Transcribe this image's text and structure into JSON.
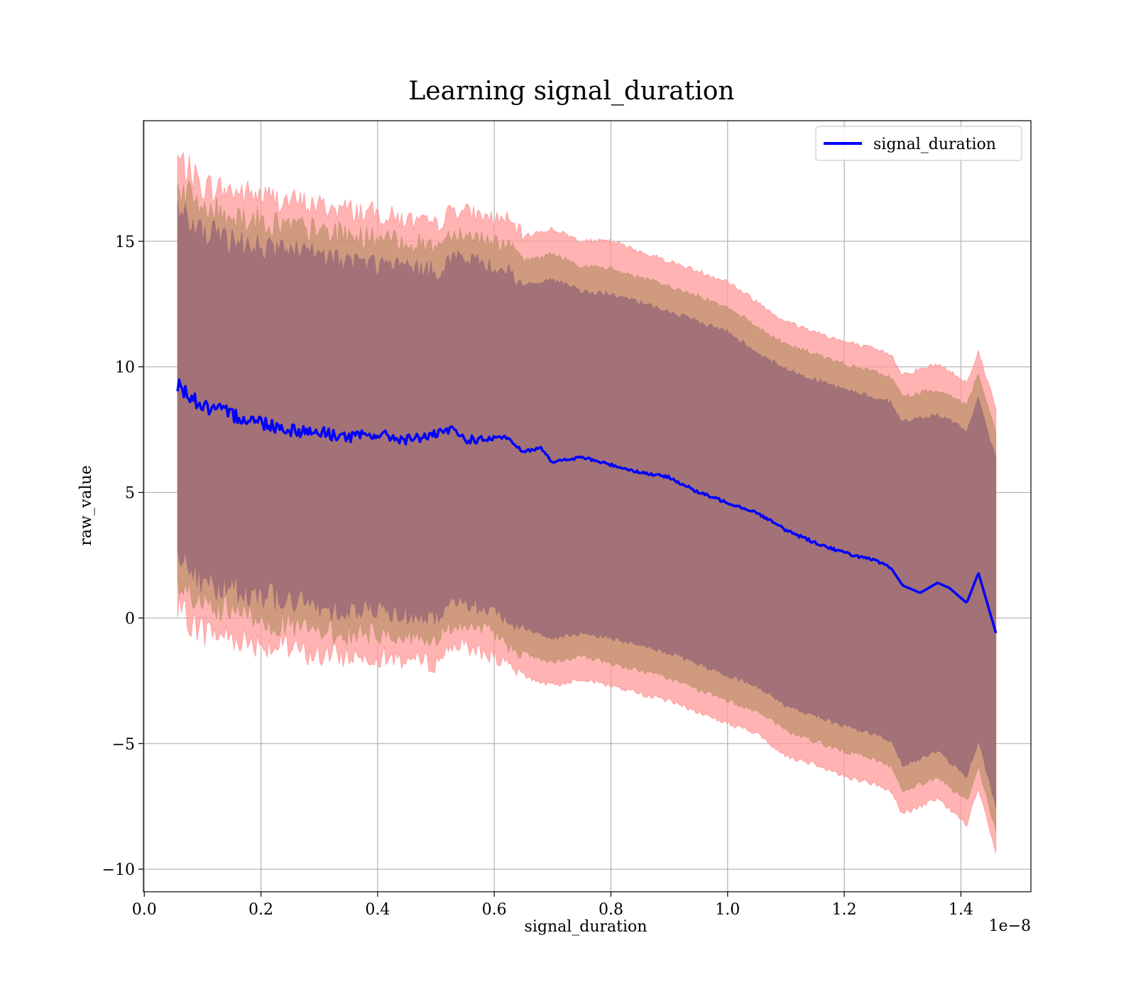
{
  "chart_data": {
    "type": "line",
    "title": "Learning signal_duration",
    "xlabel": "signal_duration",
    "ylabel": "raw_value",
    "x_offset_label": "1e−8",
    "xlim": [
      -0.0015,
      1.52
    ],
    "ylim": [
      -10.9,
      19.8
    ],
    "x_ticks": [
      0.0,
      0.2,
      0.4,
      0.6,
      0.8,
      1.0,
      1.2,
      1.4
    ],
    "x_tick_labels": [
      "0.0",
      "0.2",
      "0.4",
      "0.6",
      "0.8",
      "1.0",
      "1.2",
      "1.4"
    ],
    "y_ticks": [
      -10,
      -5,
      0,
      5,
      10,
      15
    ],
    "y_tick_labels": [
      "−10",
      "−5",
      "0",
      "5",
      "10",
      "15"
    ],
    "grid": true,
    "legend_position": "top-right",
    "colors": {
      "line": "#0000ff",
      "band_outer": "#ff9999",
      "band_middle": "#c49470",
      "band_inner": "#a06f78",
      "grid": "#b0b0b0"
    },
    "series": [
      {
        "name": "signal_duration",
        "x": [
          0.057,
          0.1,
          0.15,
          0.2,
          0.25,
          0.3,
          0.35,
          0.4,
          0.45,
          0.5,
          0.53,
          0.55,
          0.58,
          0.62,
          0.65,
          0.68,
          0.7,
          0.75,
          0.8,
          0.85,
          0.9,
          0.95,
          1.0,
          1.05,
          1.1,
          1.15,
          1.2,
          1.25,
          1.28,
          1.3,
          1.33,
          1.36,
          1.38,
          1.41,
          1.43,
          1.46
        ],
        "y": [
          9.3,
          8.4,
          8.1,
          7.8,
          7.5,
          7.4,
          7.2,
          7.3,
          7.1,
          7.3,
          7.5,
          7.1,
          7.1,
          7.2,
          6.6,
          6.8,
          6.2,
          6.4,
          6.1,
          5.8,
          5.6,
          5.0,
          4.6,
          4.2,
          3.5,
          3.0,
          2.6,
          2.3,
          2.0,
          1.3,
          1.0,
          1.4,
          1.2,
          0.6,
          1.8,
          -0.6
        ]
      }
    ],
    "bands": [
      {
        "role": "outer",
        "x": [
          0.057,
          0.1,
          0.2,
          0.3,
          0.4,
          0.5,
          0.53,
          0.6,
          0.62,
          0.65,
          0.7,
          0.75,
          0.8,
          0.9,
          1.0,
          1.05,
          1.1,
          1.15,
          1.2,
          1.25,
          1.28,
          1.3,
          1.36,
          1.41,
          1.43,
          1.46
        ],
        "upper": [
          18.3,
          17.2,
          16.8,
          16.4,
          16.1,
          15.6,
          16.3,
          15.9,
          15.9,
          15.2,
          15.5,
          15.0,
          15.0,
          14.2,
          13.4,
          12.6,
          11.8,
          11.4,
          11.0,
          10.7,
          10.5,
          9.7,
          10.1,
          9.4,
          10.6,
          8.4
        ],
        "lower": [
          0.3,
          -0.5,
          -1.0,
          -1.5,
          -1.5,
          -1.8,
          -1.0,
          -1.5,
          -1.9,
          -2.3,
          -2.7,
          -2.4,
          -2.7,
          -3.3,
          -4.2,
          -4.6,
          -5.5,
          -5.8,
          -6.3,
          -6.6,
          -6.9,
          -7.8,
          -7.2,
          -8.2,
          -6.8,
          -9.4
        ]
      },
      {
        "role": "middle",
        "x": [
          0.057,
          0.1,
          0.2,
          0.3,
          0.4,
          0.5,
          0.53,
          0.6,
          0.62,
          0.65,
          0.7,
          0.75,
          0.8,
          0.9,
          1.0,
          1.05,
          1.1,
          1.15,
          1.2,
          1.25,
          1.28,
          1.3,
          1.36,
          1.41,
          1.43,
          1.46
        ],
        "upper": [
          17.2,
          16.3,
          15.8,
          15.4,
          15.1,
          14.8,
          15.4,
          15.0,
          14.9,
          14.2,
          14.5,
          14.0,
          13.9,
          13.2,
          12.4,
          11.6,
          10.9,
          10.5,
          10.1,
          9.8,
          9.6,
          8.8,
          9.1,
          8.5,
          9.7,
          7.3
        ],
        "lower": [
          1.3,
          0.4,
          0.0,
          -0.6,
          -0.6,
          -0.9,
          -0.2,
          -0.6,
          -1.0,
          -1.4,
          -1.8,
          -1.5,
          -1.8,
          -2.4,
          -3.3,
          -3.7,
          -4.5,
          -4.9,
          -5.3,
          -5.6,
          -5.9,
          -6.9,
          -6.3,
          -7.3,
          -5.9,
          -8.5
        ]
      },
      {
        "role": "inner",
        "x": [
          0.057,
          0.1,
          0.2,
          0.3,
          0.4,
          0.5,
          0.53,
          0.6,
          0.62,
          0.65,
          0.7,
          0.75,
          0.8,
          0.9,
          1.0,
          1.05,
          1.1,
          1.15,
          1.2,
          1.25,
          1.28,
          1.3,
          1.36,
          1.41,
          1.43,
          1.46
        ],
        "upper": [
          16.2,
          15.3,
          14.8,
          14.4,
          14.1,
          13.8,
          14.4,
          14.0,
          13.9,
          13.2,
          13.5,
          13.0,
          12.9,
          12.2,
          11.4,
          10.6,
          9.9,
          9.5,
          9.1,
          8.8,
          8.6,
          7.8,
          8.1,
          7.5,
          8.7,
          6.3
        ],
        "lower": [
          2.4,
          1.4,
          1.0,
          0.4,
          0.3,
          0.0,
          0.7,
          0.3,
          0.0,
          -0.4,
          -0.8,
          -0.6,
          -0.8,
          -1.4,
          -2.3,
          -2.7,
          -3.5,
          -3.9,
          -4.3,
          -4.6,
          -4.9,
          -5.9,
          -5.3,
          -6.3,
          -4.9,
          -7.5
        ]
      }
    ]
  }
}
